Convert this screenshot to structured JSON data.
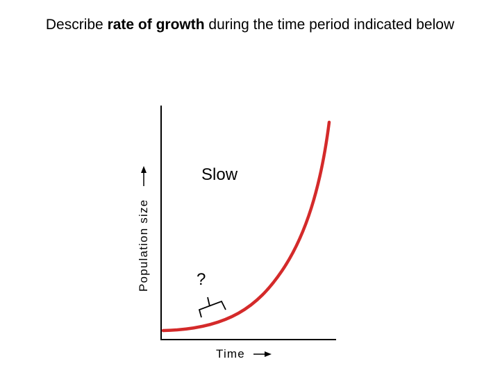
{
  "question": {
    "prefix": "Describe ",
    "emphasis": "rate of growth",
    "suffix": " during the time period indicated below"
  },
  "graph": {
    "y_axis_label": "Population size",
    "x_axis_label": "Time",
    "curve_shape": "exponential (J-shaped) growth",
    "curve_color": "#d42a2a",
    "answer_label": "Slow",
    "marker_label": "?",
    "marker_icon": "bracket"
  }
}
